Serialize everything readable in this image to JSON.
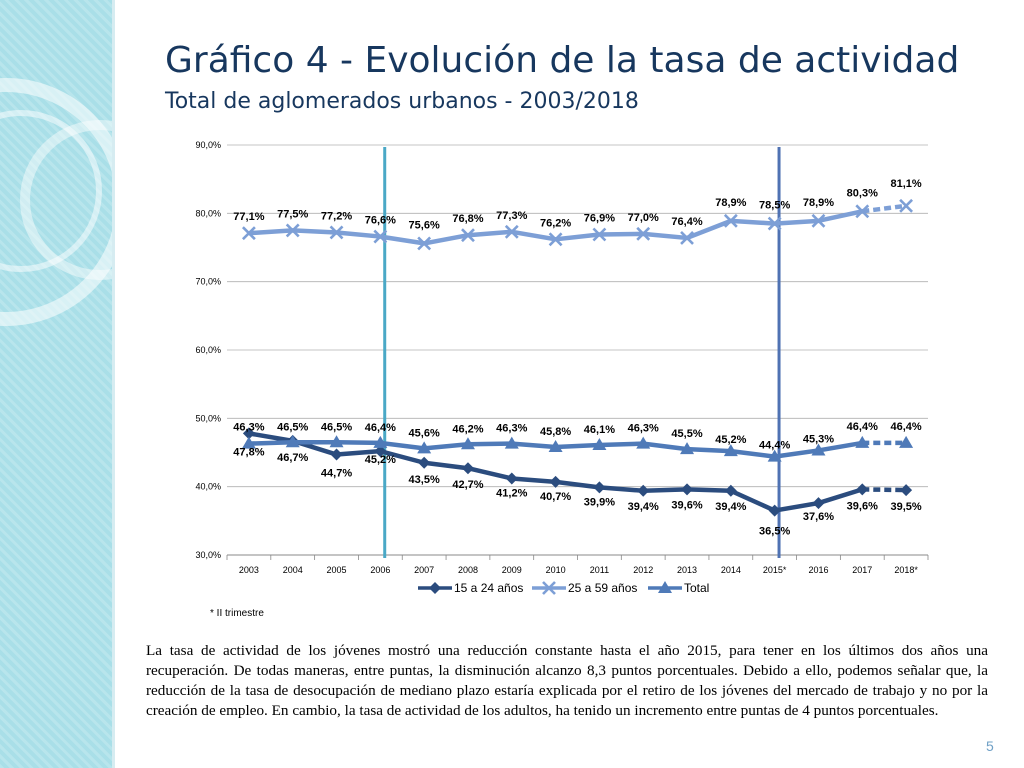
{
  "slide": {
    "title": "Gráfico 4 - Evolución de la tasa de actividad",
    "subtitle": "Total de aglomerados urbanos - 2003/2018",
    "footnote": "* II trimestre",
    "paragraph": "La tasa de actividad de los jóvenes mostró una reducción constante hasta el año 2015, para tener en los últimos dos años una recuperación. De todas maneras, entre puntas, la disminución alcanzo 8,3 puntos porcentuales. Debido a ello, podemos señalar que, la reducción de la tasa de desocupación de mediano plazo estaría explicada por el retiro de los jóvenes del mercado de trabajo y no por la creación de empleo.  En cambio, la tasa de actividad de los adultos, ha tenido un incremento entre puntas de 4 puntos porcentuales.",
    "page_number": "5"
  },
  "colors": {
    "series_15_24": "#2b4c7e",
    "series_25_59": "#7d9fd6",
    "series_total": "#4f7ab8",
    "vline_2007": "#4aa8c6",
    "vline_2016": "#4f72b3",
    "grid": "#b0b0b0"
  },
  "chart_data": {
    "type": "line",
    "categories": [
      "2003",
      "2004",
      "2005",
      "2006",
      "2007",
      "2008",
      "2009",
      "2010",
      "2011",
      "2012",
      "2013",
      "2014",
      "2015*",
      "2016",
      "2017",
      "2018*"
    ],
    "ylim": [
      30,
      90
    ],
    "yticks": [
      "30,0%",
      "40,0%",
      "50,0%",
      "60,0%",
      "70,0%",
      "80,0%",
      "90,0%"
    ],
    "gridlines": true,
    "legend_position": "bottom",
    "vertical_markers": [
      "2006-2007",
      "2015*-2016"
    ],
    "series": [
      {
        "name": "15 a 24 años",
        "marker": "diamond",
        "values": [
          47.8,
          46.7,
          44.7,
          45.2,
          43.5,
          42.7,
          41.2,
          40.7,
          39.9,
          39.4,
          39.6,
          39.4,
          36.5,
          37.6,
          39.6,
          39.5
        ],
        "labels": [
          "47,8%",
          "46,7%",
          "44,7%",
          "45,2%",
          "43,5%",
          "42,7%",
          "41,2%",
          "40,7%",
          "39,9%",
          "39,4%",
          "39,6%",
          "39,4%",
          "36,5%",
          "37,6%",
          "39,6%",
          "39,5%"
        ]
      },
      {
        "name": "25 a 59 años",
        "marker": "x",
        "values": [
          77.1,
          77.5,
          77.2,
          76.6,
          75.6,
          76.8,
          77.3,
          76.2,
          76.9,
          77.0,
          76.4,
          78.9,
          78.5,
          78.9,
          80.3,
          81.1
        ],
        "labels": [
          "77,1%",
          "77,5%",
          "77,2%",
          "76,6%",
          "75,6%",
          "76,8%",
          "77,3%",
          "76,2%",
          "76,9%",
          "77,0%",
          "76,4%",
          "78,9%",
          "78,5%",
          "78,9%",
          "80,3%",
          "81,1%"
        ]
      },
      {
        "name": "Total",
        "marker": "triangle",
        "values": [
          46.3,
          46.5,
          46.5,
          46.4,
          45.6,
          46.2,
          46.3,
          45.8,
          46.1,
          46.3,
          45.5,
          45.2,
          44.4,
          45.3,
          46.4,
          46.4
        ],
        "labels": [
          "46,3%",
          "46,5%",
          "46,5%",
          "46,4%",
          "45,6%",
          "46,2%",
          "46,3%",
          "45,8%",
          "46,1%",
          "46,3%",
          "45,5%",
          "45,2%",
          "44,4%",
          "45,3%",
          "46,4%",
          "46,4%"
        ]
      }
    ]
  }
}
